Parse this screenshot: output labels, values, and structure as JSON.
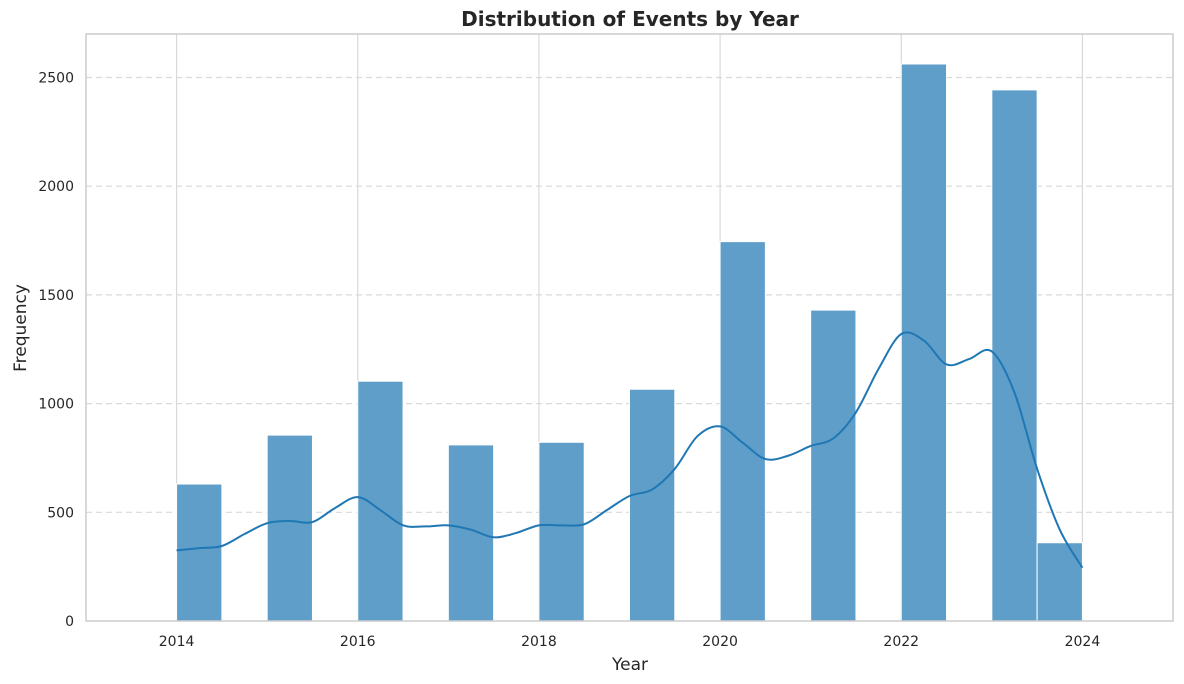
{
  "chart_data": {
    "type": "bar",
    "title": "Distribution of Events by Year",
    "xlabel": "Year",
    "ylabel": "Frequency",
    "xlim": [
      2013.0,
      2025.0
    ],
    "ylim": [
      0,
      2700
    ],
    "x_ticks": [
      2014,
      2016,
      2018,
      2020,
      2022,
      2024
    ],
    "y_ticks": [
      0,
      500,
      1000,
      1500,
      2000,
      2500
    ],
    "grid": {
      "horizontal": "dashed",
      "vertical": "solid, major x ticks"
    },
    "histogram_bins": [
      {
        "start": 2014.0,
        "end": 2014.5,
        "count": 630
      },
      {
        "start": 2015.0,
        "end": 2015.5,
        "count": 855
      },
      {
        "start": 2016.0,
        "end": 2016.5,
        "count": 1103
      },
      {
        "start": 2017.0,
        "end": 2017.5,
        "count": 810
      },
      {
        "start": 2018.0,
        "end": 2018.5,
        "count": 822
      },
      {
        "start": 2019.0,
        "end": 2019.5,
        "count": 1066
      },
      {
        "start": 2020.0,
        "end": 2020.5,
        "count": 1745
      },
      {
        "start": 2021.0,
        "end": 2021.5,
        "count": 1430
      },
      {
        "start": 2022.0,
        "end": 2022.5,
        "count": 2562
      },
      {
        "start": 2023.0,
        "end": 2023.5,
        "count": 2443
      },
      {
        "start": 2023.5,
        "end": 2024.0,
        "count": 360
      }
    ],
    "kde_curve": {
      "x": [
        2014.0,
        2014.25,
        2014.5,
        2014.75,
        2015.0,
        2015.25,
        2015.5,
        2015.75,
        2016.0,
        2016.25,
        2016.5,
        2016.75,
        2017.0,
        2017.25,
        2017.5,
        2017.75,
        2018.0,
        2018.25,
        2018.5,
        2018.75,
        2019.0,
        2019.25,
        2019.5,
        2019.75,
        2020.0,
        2020.25,
        2020.5,
        2020.75,
        2021.0,
        2021.25,
        2021.5,
        2021.75,
        2022.0,
        2022.25,
        2022.5,
        2022.75,
        2023.0,
        2023.25,
        2023.5,
        2023.75,
        2024.0
      ],
      "y": [
        325,
        335,
        345,
        400,
        450,
        460,
        455,
        520,
        570,
        510,
        440,
        435,
        440,
        420,
        385,
        405,
        440,
        440,
        445,
        510,
        575,
        605,
        700,
        850,
        895,
        820,
        745,
        760,
        805,
        840,
        960,
        1160,
        1320,
        1290,
        1180,
        1205,
        1240,
        1050,
        700,
        420,
        245
      ]
    },
    "colors": {
      "bar": "#5f9ec9",
      "bar_edge": "#ffffff",
      "kde": "#1f77b4",
      "grid": "#d9d9d9",
      "axes": "#cccccc"
    }
  }
}
